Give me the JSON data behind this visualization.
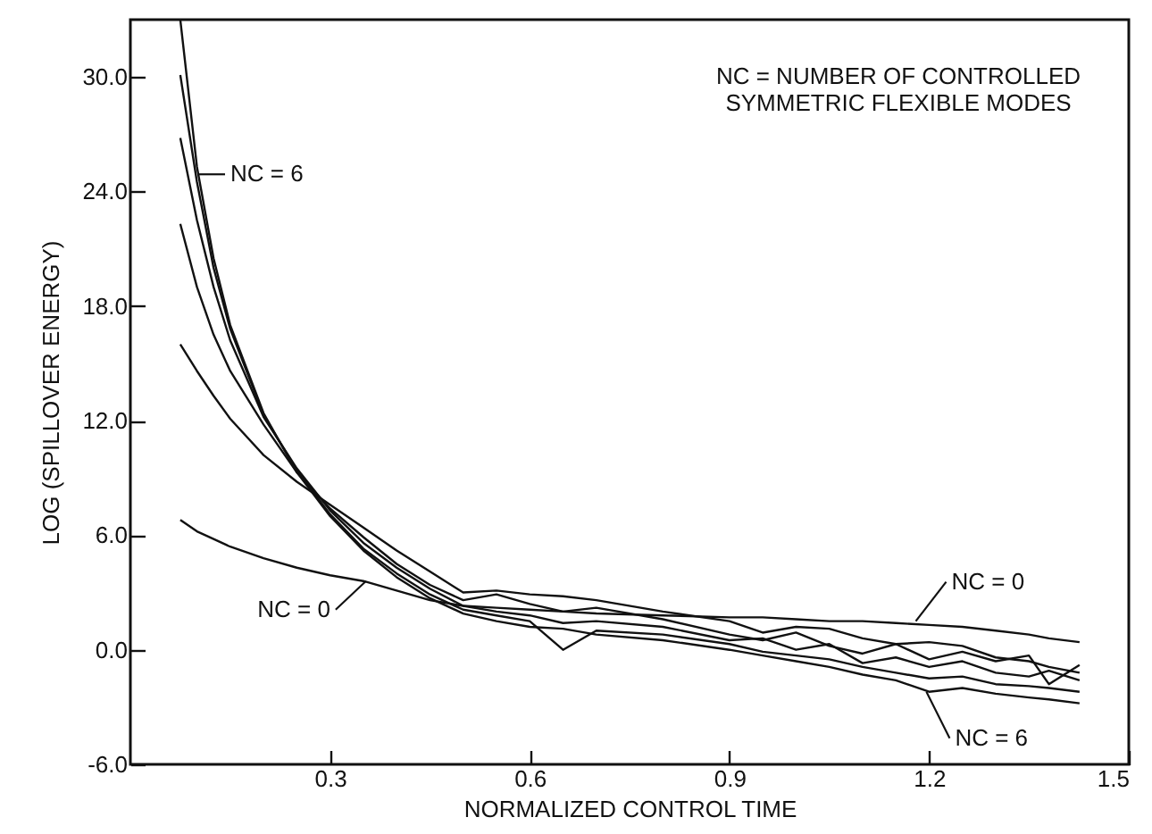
{
  "chart_data": {
    "type": "line",
    "xlabel": "NORMALIZED CONTROL TIME",
    "ylabel": "LOG (SPILLOVER ENERGY)",
    "x": [
      0.075,
      0.1,
      0.125,
      0.15,
      0.2,
      0.25,
      0.3,
      0.35,
      0.4,
      0.45,
      0.5,
      0.55,
      0.6,
      0.65,
      0.7,
      0.8,
      0.9,
      0.95,
      1.0,
      1.05,
      1.1,
      1.15,
      1.2,
      1.25,
      1.3,
      1.35,
      1.38,
      1.426
    ],
    "series": [
      {
        "color": "#111111",
        "values": [
          6.8,
          6.2,
          5.8,
          5.4,
          4.8,
          4.3,
          3.9,
          3.6,
          3.1,
          2.6,
          2.3,
          2.2,
          2.1,
          2.0,
          1.9,
          1.8,
          1.7,
          1.7,
          1.6,
          1.5,
          1.5,
          1.4,
          1.3,
          1.2,
          1.0,
          0.8,
          0.6,
          0.4
        ]
      },
      {
        "color": "#111111",
        "values": [
          16.0,
          14.6,
          13.3,
          12.1,
          10.2,
          8.8,
          7.6,
          6.4,
          5.2,
          4.1,
          3.0,
          3.1,
          2.9,
          2.8,
          2.6,
          2.0,
          1.5,
          0.9,
          1.2,
          1.1,
          0.6,
          0.3,
          0.4,
          0.2,
          -0.4,
          -0.6,
          -0.9,
          -1.2
        ]
      },
      {
        "color": "#111111",
        "values": [
          22.3,
          19.0,
          16.5,
          14.6,
          11.8,
          9.3,
          7.4,
          5.9,
          4.5,
          3.4,
          2.6,
          2.9,
          2.4,
          2.0,
          2.2,
          1.6,
          0.8,
          0.5,
          0.9,
          0.2,
          -0.2,
          0.3,
          -0.5,
          -0.1,
          -0.6,
          -0.3,
          -1.8,
          -0.8
        ]
      },
      {
        "color": "#111111",
        "values": [
          26.8,
          22.5,
          19.0,
          16.2,
          12.2,
          9.5,
          7.3,
          5.6,
          4.3,
          3.2,
          2.3,
          2.0,
          1.8,
          1.4,
          1.5,
          1.2,
          0.5,
          0.6,
          0.0,
          0.3,
          -0.7,
          -0.4,
          -0.9,
          -0.6,
          -1.2,
          -1.4,
          -1.1,
          -1.6
        ]
      },
      {
        "color": "#111111",
        "values": [
          30.1,
          24.5,
          20.0,
          16.8,
          12.3,
          9.4,
          7.1,
          5.3,
          4.0,
          2.9,
          2.1,
          1.8,
          1.5,
          0.0,
          1.0,
          0.8,
          0.3,
          -0.1,
          -0.3,
          -0.5,
          -0.9,
          -1.2,
          -1.5,
          -1.4,
          -1.8,
          -1.9,
          -2.0,
          -2.2
        ]
      },
      {
        "color": "#111111",
        "values": [
          33.0,
          25.3,
          20.5,
          17.0,
          12.4,
          9.3,
          7.0,
          5.2,
          3.8,
          2.7,
          1.9,
          1.5,
          1.2,
          1.1,
          0.8,
          0.5,
          0.0,
          -0.3,
          -0.6,
          -0.9,
          -1.3,
          -1.6,
          -2.2,
          -2.0,
          -2.3,
          -2.5,
          -2.6,
          -2.8
        ]
      }
    ],
    "xlim": [
      0,
      1.5
    ],
    "ylim": [
      -6,
      33
    ],
    "xticks": [
      0.3,
      0.6,
      0.9,
      1.2,
      1.5
    ],
    "yticks": [
      {
        "value": -6,
        "label": "-6.0"
      },
      {
        "value": 0,
        "label": "0.0"
      },
      {
        "value": 6,
        "label": "6.0"
      },
      {
        "value": 12,
        "label": "12.0"
      },
      {
        "value": 18,
        "label": "18.0"
      },
      {
        "value": 24,
        "label": "24.0"
      },
      {
        "value": 30,
        "label": "30.0"
      }
    ],
    "marker": "none",
    "line_style": "solid",
    "grid": false,
    "annotations": [
      "NC = NUMBER OF CONTROLLED\nSYMMETRIC FLEXIBLE MODES",
      {
        "text": "NC = 6",
        "x": 0.102,
        "y": 24.9
      },
      {
        "text": "NC = 0",
        "x": 0.354,
        "y": 3.6
      },
      {
        "text": "NC = 0",
        "x": 1.18,
        "y": 1.5
      },
      {
        "text": "NC = 6",
        "x": 1.196,
        "y": -2.2
      }
    ]
  }
}
